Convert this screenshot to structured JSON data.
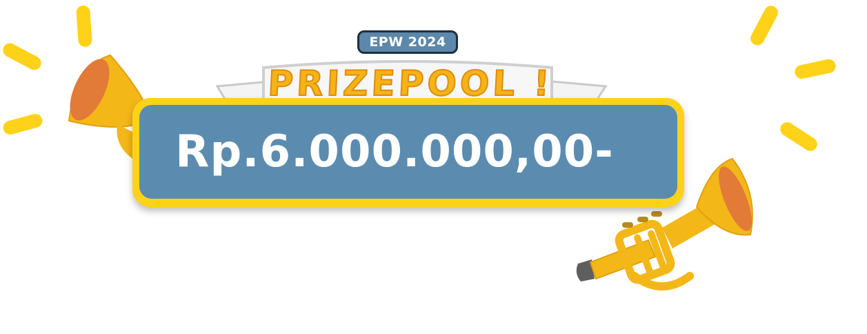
{
  "badge": {
    "label": "EPW 2024"
  },
  "title": {
    "text": "PRIZEPOOL !"
  },
  "prize": {
    "amount": "Rp.6.000.000,00-"
  },
  "colors": {
    "gold": "#ffd21a",
    "panel": "#5b8cb0",
    "title_fill": "#f5b416",
    "badge_bg": "#5b88ab",
    "trumpet_bell_inner": "#e07a3a"
  },
  "icons": {
    "left": "trumpet-icon",
    "right": "trumpet-icon",
    "rays": "sparkle-rays"
  }
}
